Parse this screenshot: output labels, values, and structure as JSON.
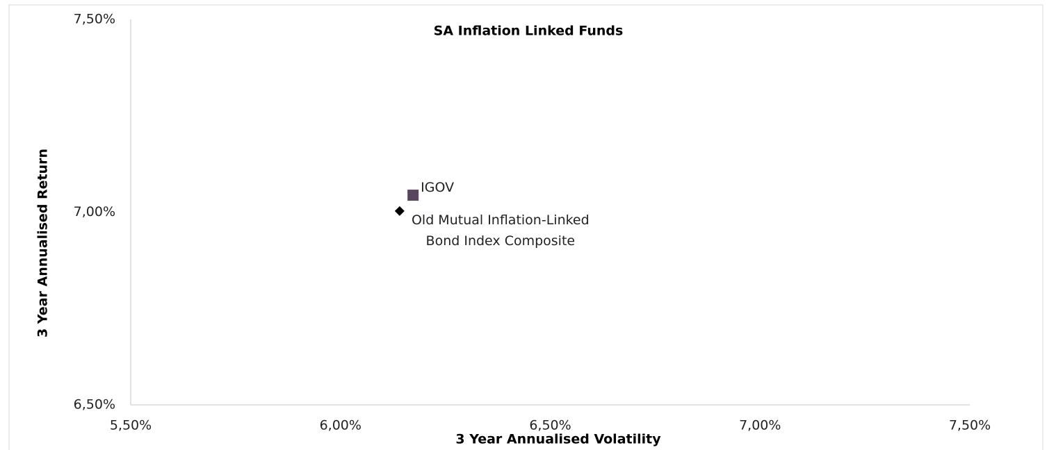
{
  "chart_data": {
    "type": "scatter",
    "title": "SA Inflation Linked Funds",
    "x_label": "3 Year Annualised Volatility",
    "y_label": "3 Year Annualised Return",
    "series": [
      {
        "name": "IGOV",
        "color": "#5a4560",
        "marker": "square",
        "x": [
          6.173
        ],
        "values": [
          7.044
        ]
      },
      {
        "name": "Old Mutual Inflation-Linked Bond Index Composite",
        "color": "#000000",
        "marker": "diamond",
        "x": [
          6.141
        ],
        "values": [
          7.003
        ]
      }
    ],
    "xlim": [
      5.5,
      7.5
    ],
    "xticks": [
      {
        "value": 5.5,
        "label": "5,50%"
      },
      {
        "value": 6.0,
        "label": "6,00%"
      },
      {
        "value": 6.5,
        "label": "6,50%"
      },
      {
        "value": 7.0,
        "label": "7,00%"
      },
      {
        "value": 7.5,
        "label": "7,50%"
      }
    ],
    "ylim": [
      6.5,
      7.5
    ],
    "yticks": [
      {
        "value": 6.5,
        "label": "6,50%"
      },
      {
        "value": 7.0,
        "label": "7,00%"
      },
      {
        "value": 7.5,
        "label": "7,50%"
      }
    ],
    "grid": false
  }
}
